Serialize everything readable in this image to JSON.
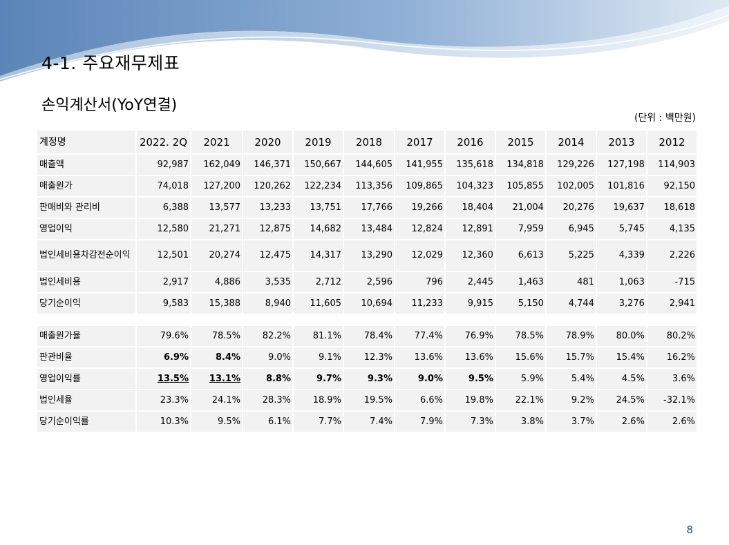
{
  "slide": {
    "title": "4-1. 주요재무제표",
    "section": "손익계산서(YoY연결)",
    "unit": "(단위 : 백만원)",
    "page_number": "8"
  },
  "colors": {
    "cell_bg": "#f2f2f2",
    "wave_blue": "#6f97c6",
    "wave_light": "#cfe0ee",
    "page_number": "#1f4e79"
  },
  "table": {
    "header_label": "계정명",
    "years": [
      "2022. 2Q",
      "2021",
      "2020",
      "2019",
      "2018",
      "2017",
      "2016",
      "2015",
      "2014",
      "2013",
      "2012"
    ],
    "rows": [
      {
        "label": "매출액",
        "values": [
          "92,987",
          "162,049",
          "146,371",
          "150,667",
          "144,605",
          "141,955",
          "135,618",
          "134,818",
          "129,226",
          "127,198",
          "114,903"
        ]
      },
      {
        "label": "매출원가",
        "values": [
          "74,018",
          "127,200",
          "120,262",
          "122,234",
          "113,356",
          "109,865",
          "104,323",
          "105,855",
          "102,005",
          "101,816",
          "92,150"
        ]
      },
      {
        "label": "판매비와 관리비",
        "values": [
          "6,388",
          "13,577",
          "13,233",
          "13,751",
          "17,766",
          "19,266",
          "18,404",
          "21,004",
          "20,276",
          "19,637",
          "18,618"
        ]
      },
      {
        "label": "영업이익",
        "values": [
          "12,580",
          "21,271",
          "12,875",
          "14,682",
          "13,484",
          "12,824",
          "12,891",
          "7,959",
          "6,945",
          "5,745",
          "4,135"
        ]
      },
      {
        "label": "법인세비용차감전순이익",
        "values": [
          "12,501",
          "20,274",
          "12,475",
          "14,317",
          "13,290",
          "12,029",
          "12,360",
          "6,613",
          "5,225",
          "4,339",
          "2,226"
        ]
      },
      {
        "label": "법인세비용",
        "values": [
          "2,917",
          "4,886",
          "3,535",
          "2,712",
          "2,596",
          "796",
          "2,445",
          "1,463",
          "481",
          "1,063",
          "-715"
        ]
      },
      {
        "label": "당기순이익",
        "values": [
          "9,583",
          "15,388",
          "8,940",
          "11,605",
          "10,694",
          "11,233",
          "9,915",
          "5,150",
          "4,744",
          "3,276",
          "2,941"
        ]
      }
    ],
    "ratio_rows": [
      {
        "label": "매출원가율",
        "values": [
          "79.6%",
          "78.5%",
          "82.2%",
          "81.1%",
          "78.4%",
          "77.4%",
          "76.9%",
          "78.5%",
          "78.9%",
          "80.0%",
          "80.2%"
        ]
      },
      {
        "label": "판관비율",
        "values": [
          "6.9%",
          "8.4%",
          "9.0%",
          "9.1%",
          "12.3%",
          "13.6%",
          "13.6%",
          "15.6%",
          "15.7%",
          "15.4%",
          "16.2%"
        ]
      },
      {
        "label": "영업이익률",
        "values": [
          "13.5%",
          "13.1%",
          "8.8%",
          "9.7%",
          "9.3%",
          "9.0%",
          "9.5%",
          "5.9%",
          "5.4%",
          "4.5%",
          "3.6%"
        ]
      },
      {
        "label": "법인세율",
        "values": [
          "23.3%",
          "24.1%",
          "28.3%",
          "18.9%",
          "19.5%",
          "6.6%",
          "19.8%",
          "22.1%",
          "9.2%",
          "24.5%",
          "-32.1%"
        ]
      },
      {
        "label": "당기순이익률",
        "values": [
          "10.3%",
          "9.5%",
          "6.1%",
          "7.7%",
          "7.4%",
          "7.9%",
          "7.3%",
          "3.8%",
          "3.7%",
          "2.6%",
          "2.6%"
        ]
      }
    ]
  }
}
